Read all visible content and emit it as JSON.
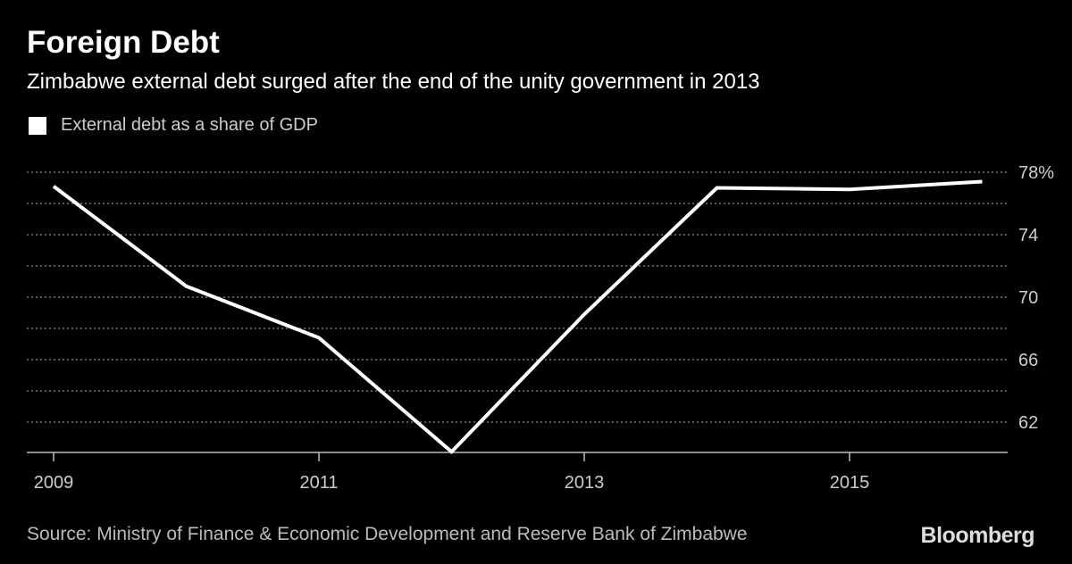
{
  "chart_data": {
    "type": "line",
    "title": "Foreign Debt",
    "subtitle": "Zimbabwe external debt surged after the end of the unity government in 2013",
    "x": [
      2009,
      2010,
      2011,
      2012,
      2013,
      2014,
      2015,
      2016
    ],
    "series": [
      {
        "name": "External debt as a share of GDP",
        "values": [
          77.1,
          70.7,
          67.4,
          60.1,
          68.9,
          77.0,
          76.9,
          77.4
        ],
        "color": "#ffffff"
      }
    ],
    "x_ticks": [
      "2009",
      "2011",
      "2013",
      "2015"
    ],
    "y_ticks": [
      "78%",
      "74",
      "70",
      "66",
      "62"
    ],
    "y_tick_values": [
      78,
      74,
      70,
      66,
      62
    ],
    "ylim": [
      60,
      78
    ],
    "xlim": [
      2009,
      2016
    ],
    "grid": true,
    "grid_minor_step": 2,
    "y_axis_side": "right",
    "legend_placement": "top-left",
    "source": "Source: Ministry of Finance & Economic Development and Reserve Bank of Zimbabwe",
    "brand": "Bloomberg",
    "background": "#000000"
  }
}
